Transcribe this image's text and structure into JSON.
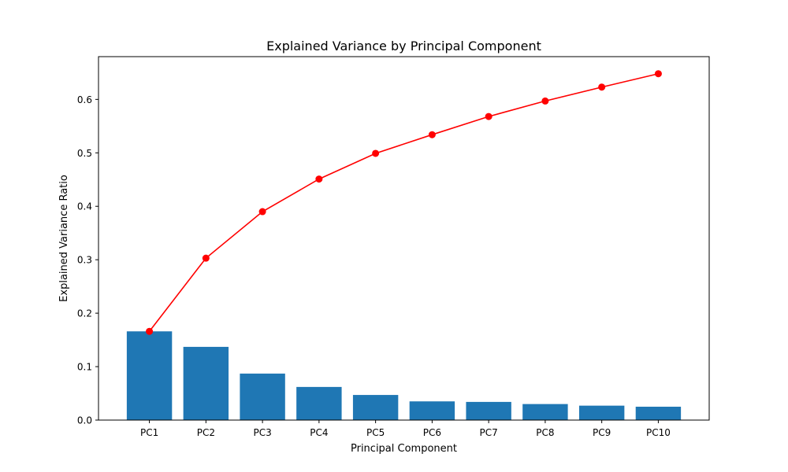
{
  "chart_data": {
    "type": "bar",
    "title": "Explained Variance by Principal Component",
    "xlabel": "Principal Component",
    "ylabel": "Explained Variance Ratio",
    "categories": [
      "PC1",
      "PC2",
      "PC3",
      "PC4",
      "PC5",
      "PC6",
      "PC7",
      "PC8",
      "PC9",
      "PC10"
    ],
    "ylim": [
      0,
      0.68
    ],
    "yticks": [
      0.0,
      0.1,
      0.2,
      0.3,
      0.4,
      0.5,
      0.6
    ],
    "ytick_labels": [
      "0.0",
      "0.1",
      "0.2",
      "0.3",
      "0.4",
      "0.5",
      "0.6"
    ],
    "grid": false,
    "series": [
      {
        "type": "bar",
        "color": "#1f77b4",
        "values": [
          0.166,
          0.137,
          0.087,
          0.062,
          0.047,
          0.035,
          0.034,
          0.03,
          0.027,
          0.025
        ]
      },
      {
        "type": "line",
        "color": "#ff0000",
        "marker": "circle",
        "values": [
          0.166,
          0.303,
          0.39,
          0.451,
          0.499,
          0.534,
          0.568,
          0.597,
          0.623,
          0.648
        ]
      }
    ]
  }
}
